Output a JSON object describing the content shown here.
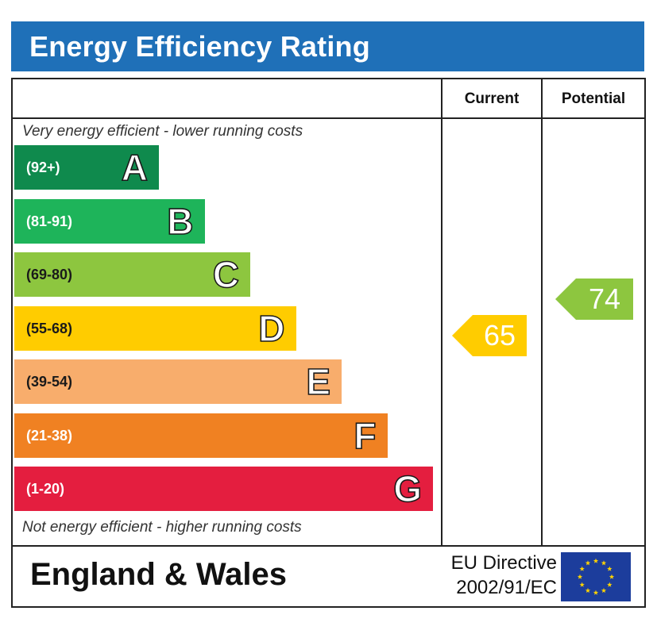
{
  "title": "Energy Efficiency Rating",
  "columns": {
    "current": "Current",
    "potential": "Potential"
  },
  "notes": {
    "top": "Very energy efficient - lower running costs",
    "bottom": "Not energy efficient - higher running costs"
  },
  "footer": {
    "region": "England & Wales",
    "directive_line1": "EU Directive",
    "directive_line2": "2002/91/EC",
    "flag_icon": "eu-flag-icon"
  },
  "chart_data": {
    "type": "bar",
    "title": "Energy Efficiency Rating",
    "categories": [
      "A",
      "B",
      "C",
      "D",
      "E",
      "F",
      "G"
    ],
    "bands": [
      {
        "letter": "A",
        "range": "(92+)",
        "min": 92,
        "max": 100,
        "color": "#0f8a4d"
      },
      {
        "letter": "B",
        "range": "(81-91)",
        "min": 81,
        "max": 91,
        "color": "#1eb45a"
      },
      {
        "letter": "C",
        "range": "(69-80)",
        "min": 69,
        "max": 80,
        "color": "#8dc63f"
      },
      {
        "letter": "D",
        "range": "(55-68)",
        "min": 55,
        "max": 68,
        "color": "#ffcc00"
      },
      {
        "letter": "E",
        "range": "(39-54)",
        "min": 39,
        "max": 54,
        "color": "#f8ad6c"
      },
      {
        "letter": "F",
        "range": "(21-38)",
        "min": 21,
        "max": 38,
        "color": "#f08122"
      },
      {
        "letter": "G",
        "range": "(1-20)",
        "min": 1,
        "max": 20,
        "color": "#e41e3f"
      }
    ],
    "series": [
      {
        "name": "Current",
        "value": 65,
        "band": "D",
        "color": "#ffcc00"
      },
      {
        "name": "Potential",
        "value": 74,
        "band": "C",
        "color": "#8dc63f"
      }
    ]
  }
}
